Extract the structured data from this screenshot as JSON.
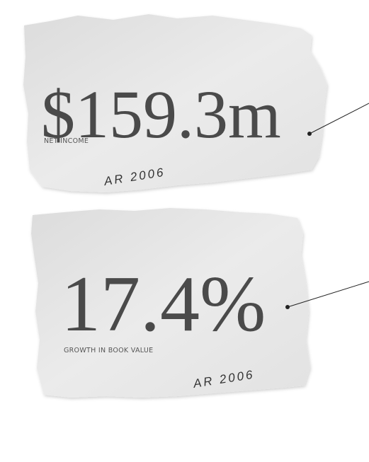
{
  "cards": [
    {
      "figure": "$159.3m",
      "label": "NET INCOME",
      "note": "AR 2006"
    },
    {
      "figure": "17.4%",
      "label": "GROWTH IN BOOK VALUE",
      "note": "AR 2006"
    }
  ]
}
